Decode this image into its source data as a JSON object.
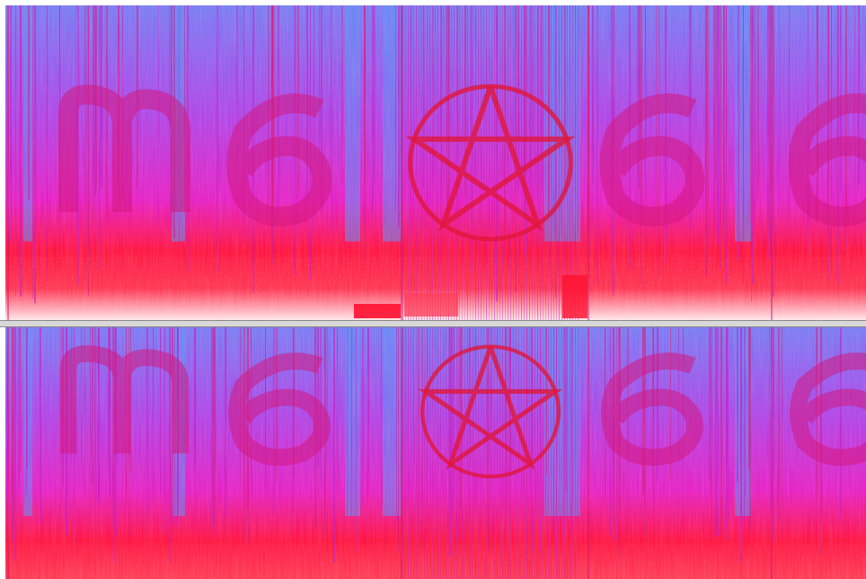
{
  "window": {
    "view": "spectrogram",
    "channels": [
      "left",
      "right"
    ]
  },
  "colors": {
    "low": "#5f8ef5",
    "mid": "#e21fcf",
    "high": "#ff1a2e",
    "peak": "#ffffff",
    "divider": "#d8d8d8"
  },
  "hidden_images": [
    {
      "channel": "left",
      "shape": "m",
      "name": "letter-m-icon"
    },
    {
      "channel": "left",
      "shape": "6",
      "name": "digit-6-icon"
    },
    {
      "channel": "left",
      "shape": "pentagram",
      "name": "pentagram-icon"
    },
    {
      "channel": "left",
      "shape": "6",
      "name": "digit-6-icon"
    },
    {
      "channel": "left",
      "shape": "6",
      "name": "digit-6-icon"
    }
  ]
}
